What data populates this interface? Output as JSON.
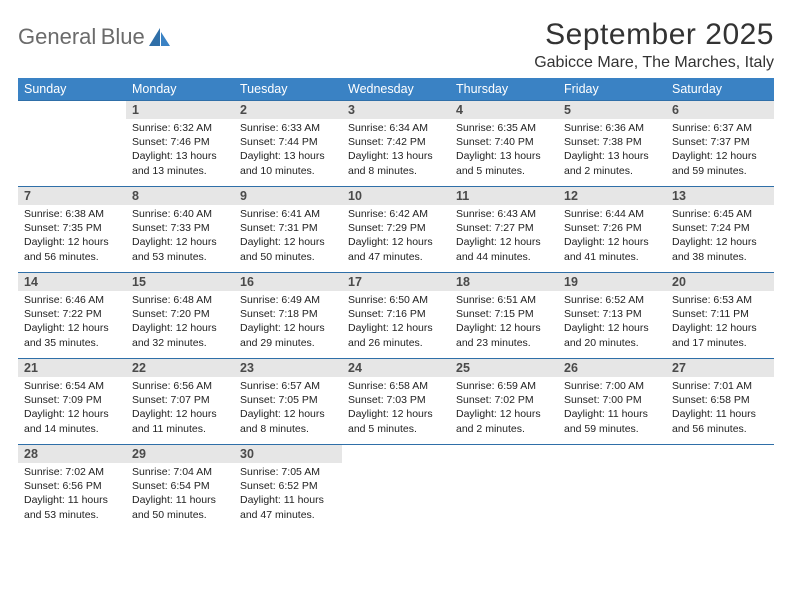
{
  "brand": {
    "name1": "General",
    "name2": "Blue",
    "accent": "#3a7fc0",
    "gray": "#6b6b6b"
  },
  "title": "September 2025",
  "location": "Gabicce Mare, The Marches, Italy",
  "header_bg": "#3a82c4",
  "border_color": "#2f6fa8",
  "daynum_bg": "#e6e6e6",
  "weekdays": [
    "Sunday",
    "Monday",
    "Tuesday",
    "Wednesday",
    "Thursday",
    "Friday",
    "Saturday"
  ],
  "weeks": [
    [
      null,
      {
        "n": "1",
        "sr": "6:32 AM",
        "ss": "7:46 PM",
        "dl": "13 hours and 13 minutes."
      },
      {
        "n": "2",
        "sr": "6:33 AM",
        "ss": "7:44 PM",
        "dl": "13 hours and 10 minutes."
      },
      {
        "n": "3",
        "sr": "6:34 AM",
        "ss": "7:42 PM",
        "dl": "13 hours and 8 minutes."
      },
      {
        "n": "4",
        "sr": "6:35 AM",
        "ss": "7:40 PM",
        "dl": "13 hours and 5 minutes."
      },
      {
        "n": "5",
        "sr": "6:36 AM",
        "ss": "7:38 PM",
        "dl": "13 hours and 2 minutes."
      },
      {
        "n": "6",
        "sr": "6:37 AM",
        "ss": "7:37 PM",
        "dl": "12 hours and 59 minutes."
      }
    ],
    [
      {
        "n": "7",
        "sr": "6:38 AM",
        "ss": "7:35 PM",
        "dl": "12 hours and 56 minutes."
      },
      {
        "n": "8",
        "sr": "6:40 AM",
        "ss": "7:33 PM",
        "dl": "12 hours and 53 minutes."
      },
      {
        "n": "9",
        "sr": "6:41 AM",
        "ss": "7:31 PM",
        "dl": "12 hours and 50 minutes."
      },
      {
        "n": "10",
        "sr": "6:42 AM",
        "ss": "7:29 PM",
        "dl": "12 hours and 47 minutes."
      },
      {
        "n": "11",
        "sr": "6:43 AM",
        "ss": "7:27 PM",
        "dl": "12 hours and 44 minutes."
      },
      {
        "n": "12",
        "sr": "6:44 AM",
        "ss": "7:26 PM",
        "dl": "12 hours and 41 minutes."
      },
      {
        "n": "13",
        "sr": "6:45 AM",
        "ss": "7:24 PM",
        "dl": "12 hours and 38 minutes."
      }
    ],
    [
      {
        "n": "14",
        "sr": "6:46 AM",
        "ss": "7:22 PM",
        "dl": "12 hours and 35 minutes."
      },
      {
        "n": "15",
        "sr": "6:48 AM",
        "ss": "7:20 PM",
        "dl": "12 hours and 32 minutes."
      },
      {
        "n": "16",
        "sr": "6:49 AM",
        "ss": "7:18 PM",
        "dl": "12 hours and 29 minutes."
      },
      {
        "n": "17",
        "sr": "6:50 AM",
        "ss": "7:16 PM",
        "dl": "12 hours and 26 minutes."
      },
      {
        "n": "18",
        "sr": "6:51 AM",
        "ss": "7:15 PM",
        "dl": "12 hours and 23 minutes."
      },
      {
        "n": "19",
        "sr": "6:52 AM",
        "ss": "7:13 PM",
        "dl": "12 hours and 20 minutes."
      },
      {
        "n": "20",
        "sr": "6:53 AM",
        "ss": "7:11 PM",
        "dl": "12 hours and 17 minutes."
      }
    ],
    [
      {
        "n": "21",
        "sr": "6:54 AM",
        "ss": "7:09 PM",
        "dl": "12 hours and 14 minutes."
      },
      {
        "n": "22",
        "sr": "6:56 AM",
        "ss": "7:07 PM",
        "dl": "12 hours and 11 minutes."
      },
      {
        "n": "23",
        "sr": "6:57 AM",
        "ss": "7:05 PM",
        "dl": "12 hours and 8 minutes."
      },
      {
        "n": "24",
        "sr": "6:58 AM",
        "ss": "7:03 PM",
        "dl": "12 hours and 5 minutes."
      },
      {
        "n": "25",
        "sr": "6:59 AM",
        "ss": "7:02 PM",
        "dl": "12 hours and 2 minutes."
      },
      {
        "n": "26",
        "sr": "7:00 AM",
        "ss": "7:00 PM",
        "dl": "11 hours and 59 minutes."
      },
      {
        "n": "27",
        "sr": "7:01 AM",
        "ss": "6:58 PM",
        "dl": "11 hours and 56 minutes."
      }
    ],
    [
      {
        "n": "28",
        "sr": "7:02 AM",
        "ss": "6:56 PM",
        "dl": "11 hours and 53 minutes."
      },
      {
        "n": "29",
        "sr": "7:04 AM",
        "ss": "6:54 PM",
        "dl": "11 hours and 50 minutes."
      },
      {
        "n": "30",
        "sr": "7:05 AM",
        "ss": "6:52 PM",
        "dl": "11 hours and 47 minutes."
      },
      null,
      null,
      null,
      null
    ]
  ],
  "labels": {
    "sunrise": "Sunrise:",
    "sunset": "Sunset:",
    "daylight": "Daylight:"
  }
}
